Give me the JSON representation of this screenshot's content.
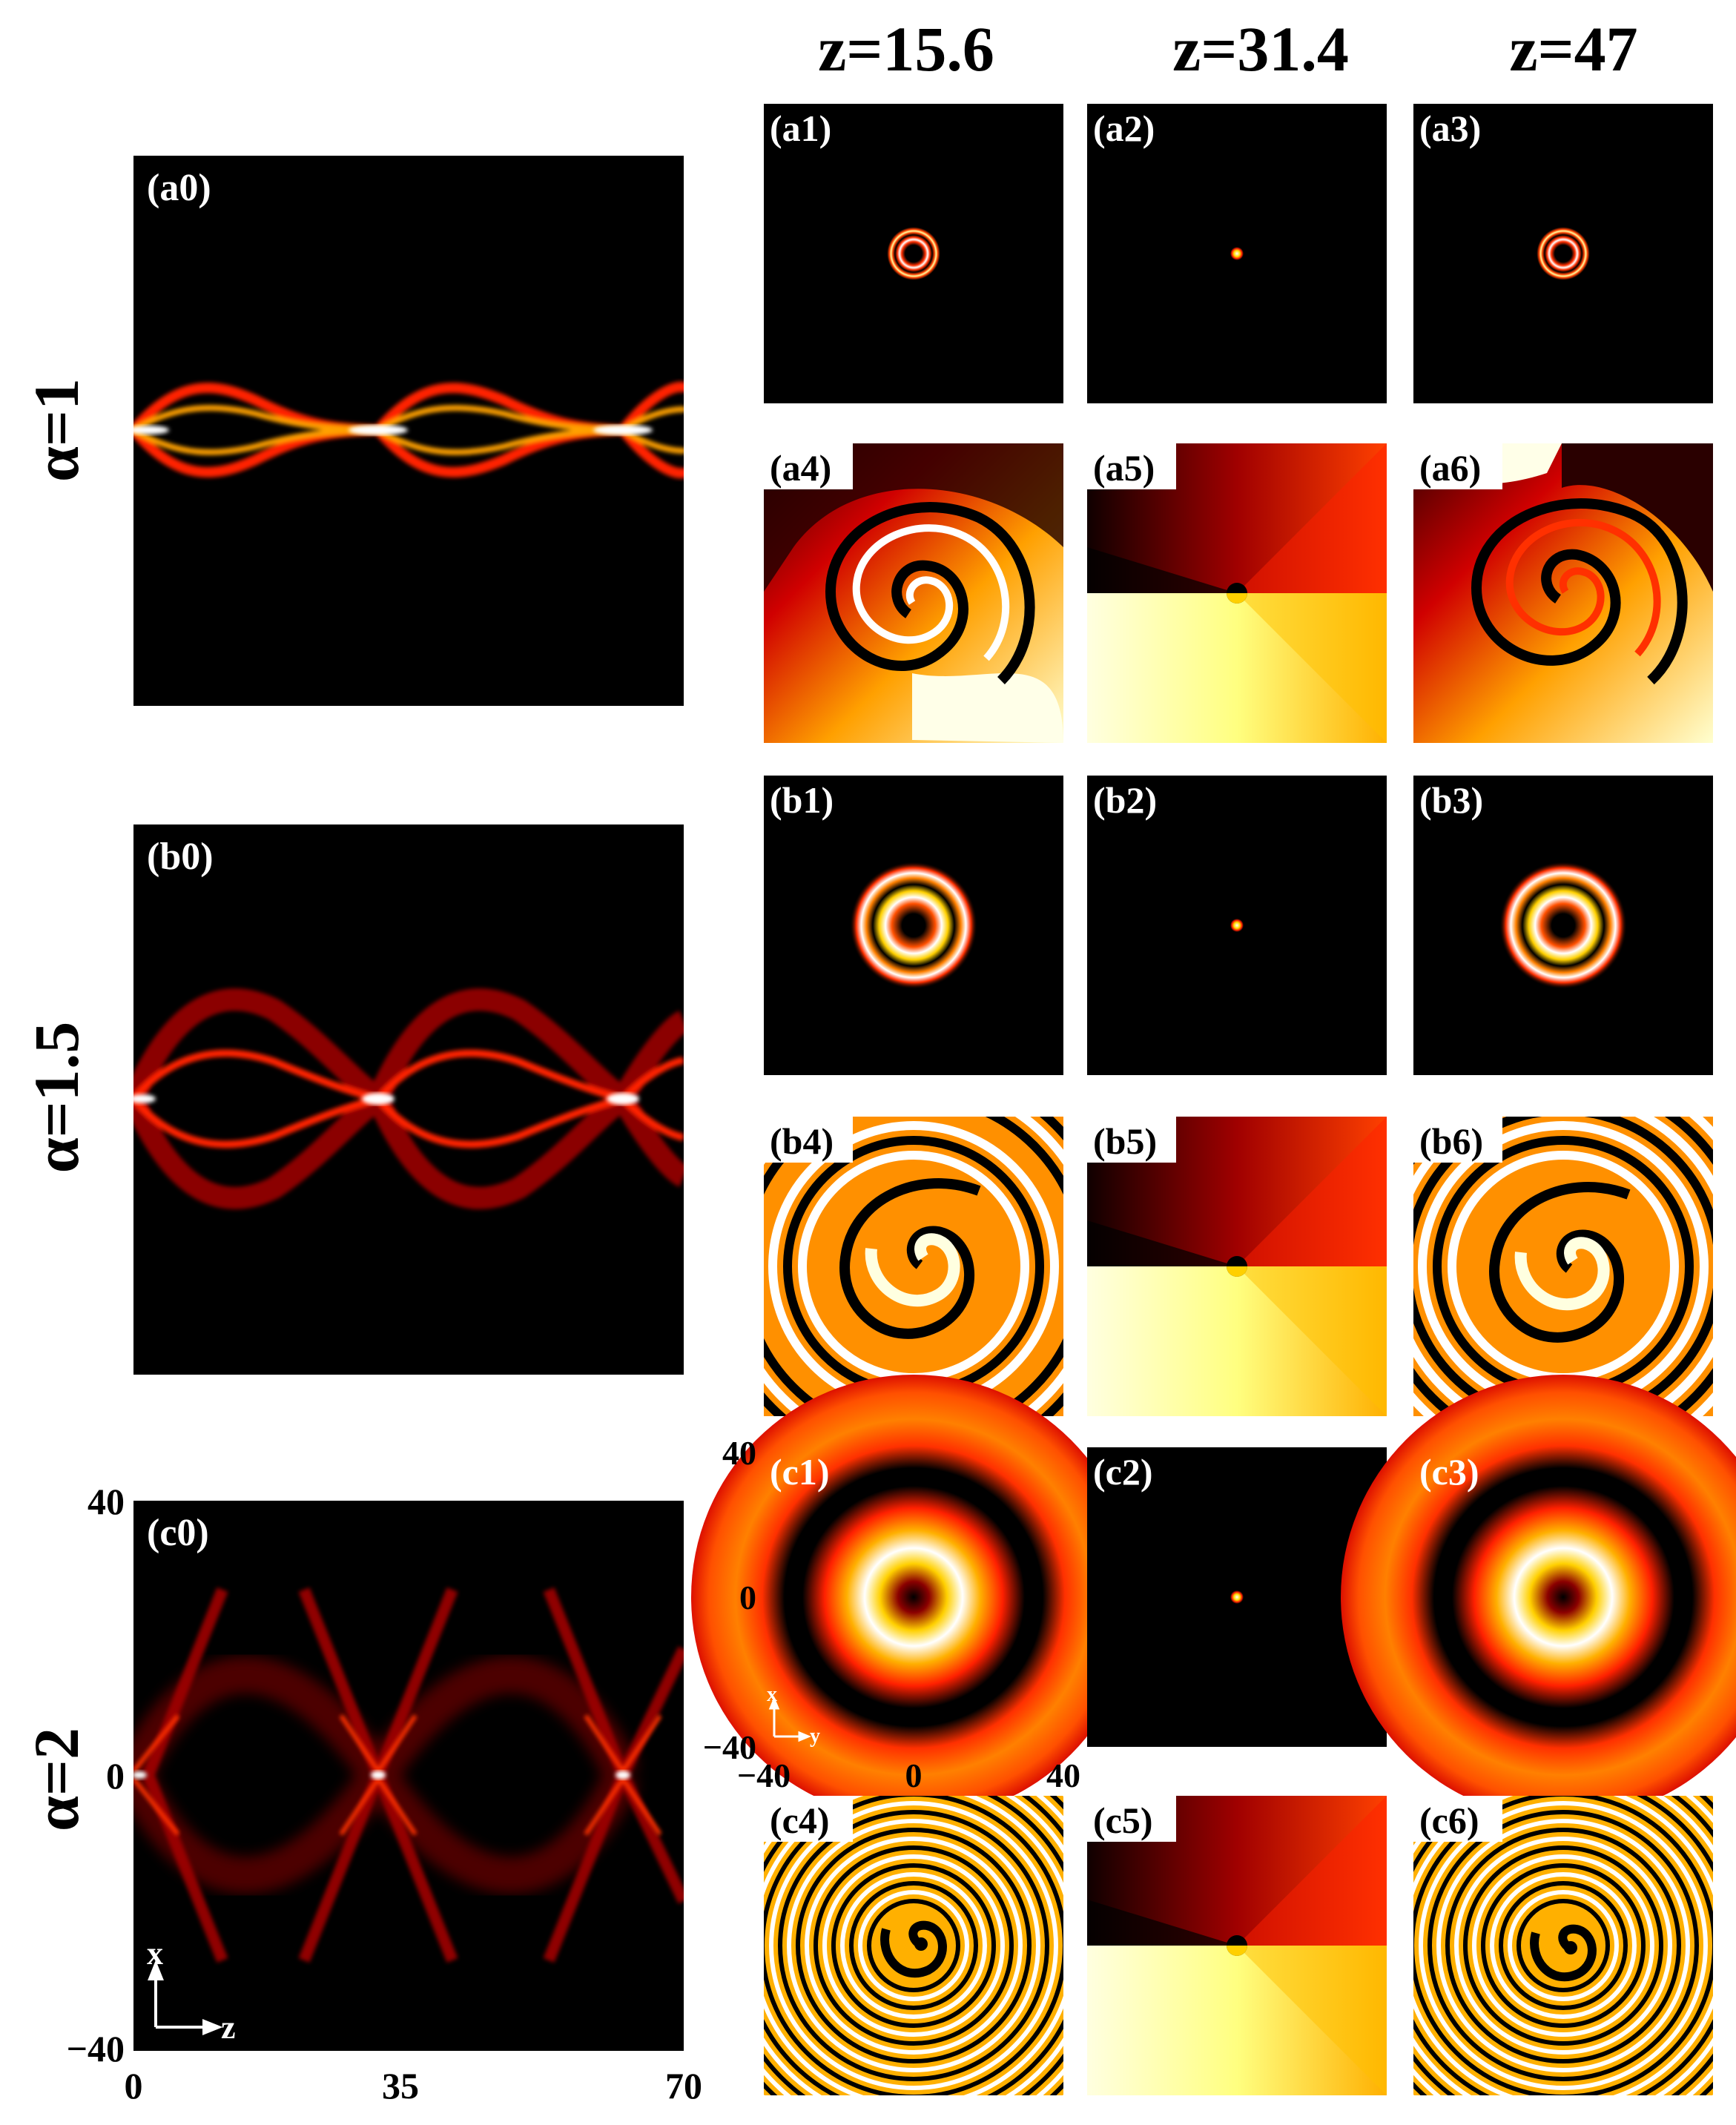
{
  "columns": [
    "z=15.6",
    "z=31.4",
    "z=47"
  ],
  "rows": [
    {
      "label": "α=1",
      "propagation_tag": "(a0)",
      "intensity_tags": [
        "(a1)",
        "(a2)",
        "(a3)"
      ],
      "phase_tags": [
        "(a4)",
        "(a5)",
        "(a6)"
      ]
    },
    {
      "label": "α=1.5",
      "propagation_tag": "(b0)",
      "intensity_tags": [
        "(b1)",
        "(b2)",
        "(b3)"
      ],
      "phase_tags": [
        "(b4)",
        "(b5)",
        "(b6)"
      ]
    },
    {
      "label": "α=2",
      "propagation_tag": "(c0)",
      "intensity_tags": [
        "(c1)",
        "(c2)",
        "(c3)"
      ],
      "phase_tags": [
        "(c4)",
        "(c5)",
        "(c6)"
      ]
    }
  ],
  "propagation_axes": {
    "x_ticks": [
      "0",
      "35",
      "70"
    ],
    "y_ticks": [
      "40",
      "0",
      "−40"
    ],
    "x_arrow": "z",
    "y_arrow": "x",
    "z_range": [
      0,
      70
    ],
    "x_range": [
      -40,
      40
    ]
  },
  "transverse_axes": {
    "x_ticks": [
      "−40",
      "0",
      "40"
    ],
    "y_ticks": [
      "40",
      "0",
      "−40"
    ],
    "x_arrow": "y",
    "y_arrow": "x"
  },
  "colors": {
    "background": "#000000",
    "colormap": [
      "#000000",
      "#8b0000",
      "#ff2a00",
      "#ffa500",
      "#ffff66",
      "#ffffff"
    ]
  }
}
